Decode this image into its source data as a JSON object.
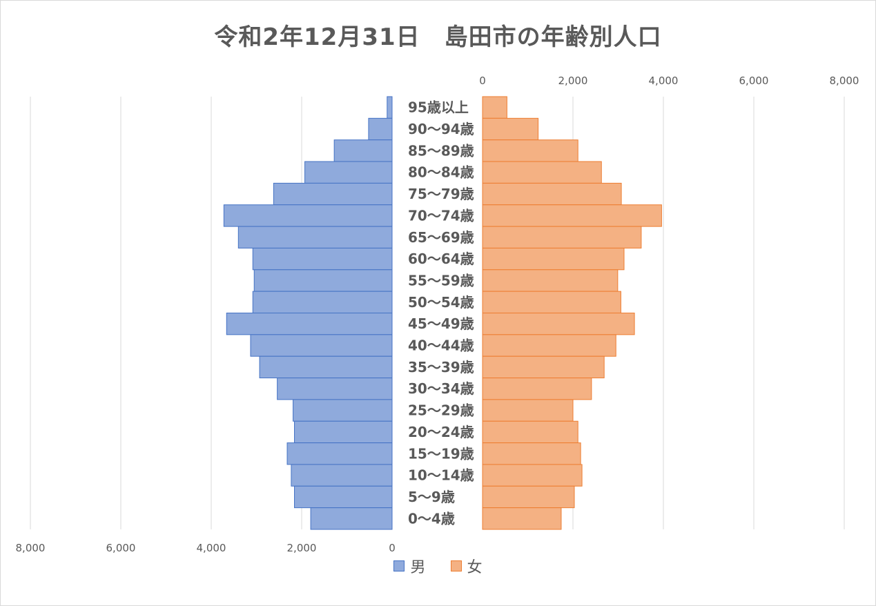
{
  "chart_data": {
    "type": "bar",
    "orientation": "horizontal-population-pyramid",
    "title": "令和2年12月31日　島田市の年齢別人口",
    "categories": [
      "95歳以上",
      "90〜94歳",
      "85〜89歳",
      "80〜84歳",
      "75〜79歳",
      "70〜74歳",
      "65〜69歳",
      "60〜64歳",
      "55〜59歳",
      "50〜54歳",
      "45〜49歳",
      "40〜44歳",
      "35〜39歳",
      "30〜34歳",
      "25〜29歳",
      "20〜24歳",
      "15〜19歳",
      "10〜14歳",
      "5〜9歳",
      "0〜4歳"
    ],
    "series": [
      {
        "name": "男",
        "color": "#8faadc",
        "stroke": "#4472c4",
        "values": [
          110,
          520,
          1280,
          1930,
          2620,
          3720,
          3400,
          3080,
          3050,
          3080,
          3660,
          3130,
          2930,
          2540,
          2190,
          2160,
          2320,
          2230,
          2160,
          1800
        ]
      },
      {
        "name": "女",
        "color": "#f4b183",
        "stroke": "#ed7d31",
        "values": [
          540,
          1230,
          2110,
          2630,
          3070,
          3960,
          3510,
          3130,
          2990,
          3060,
          3360,
          2950,
          2690,
          2410,
          2000,
          2110,
          2170,
          2200,
          2030,
          1740
        ]
      }
    ],
    "left_axis": {
      "ticks": [
        8000,
        6000,
        4000,
        2000,
        0
      ],
      "tick_labels": [
        "8,000",
        "6,000",
        "4,000",
        "2,000",
        "0"
      ],
      "max": 8000
    },
    "right_axis": {
      "ticks": [
        0,
        2000,
        4000,
        6000,
        8000
      ],
      "tick_labels": [
        "0",
        "2,000",
        "4,000",
        "6,000",
        "8,000"
      ],
      "max": 8000
    },
    "grid": true,
    "legend_position": "bottom"
  }
}
